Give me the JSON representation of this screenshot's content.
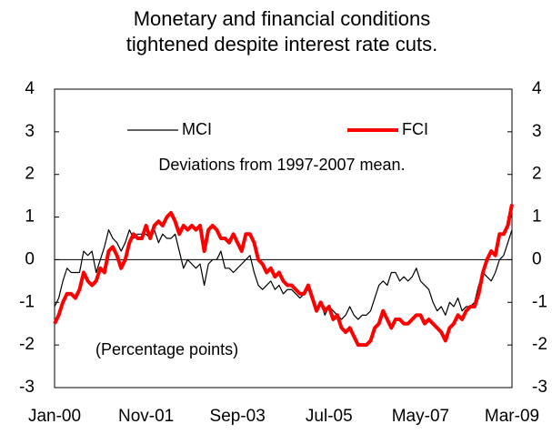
{
  "chart_data": {
    "type": "line",
    "title": [
      "Monetary and financial conditions",
      "tightened despite interest rate cuts."
    ],
    "annotations": [
      "Deviations from 1997-2007 mean.",
      "(Percentage points)"
    ],
    "categories": [
      "Jan-00",
      null,
      null,
      null,
      null,
      null,
      null,
      null,
      null,
      null,
      null,
      null,
      null,
      null,
      null,
      null,
      null,
      null,
      null,
      null,
      null,
      null,
      "Nov-01",
      null,
      null,
      null,
      null,
      null,
      null,
      null,
      null,
      null,
      null,
      null,
      null,
      null,
      null,
      null,
      null,
      null,
      null,
      null,
      null,
      null,
      "Sep-03",
      null,
      null,
      null,
      null,
      null,
      null,
      null,
      null,
      null,
      null,
      null,
      null,
      null,
      null,
      null,
      null,
      null,
      null,
      null,
      null,
      null,
      "Jul-05",
      null,
      null,
      null,
      null,
      null,
      null,
      null,
      null,
      null,
      null,
      null,
      null,
      null,
      null,
      null,
      null,
      null,
      null,
      null,
      null,
      null,
      "May-07",
      null,
      null,
      null,
      null,
      null,
      null,
      null,
      null,
      null,
      null,
      null,
      null,
      null,
      null,
      null,
      null,
      null,
      null,
      null,
      null,
      null,
      "Mar-09"
    ],
    "series": [
      {
        "name": "MCI",
        "color": "#000000",
        "width": 1.2,
        "values": [
          -1.1,
          -0.9,
          -0.5,
          -0.2,
          -0.3,
          -0.3,
          -0.3,
          0.2,
          0.1,
          0.2,
          -0.3,
          0.0,
          0.3,
          0.7,
          0.5,
          0.4,
          0.2,
          0.4,
          0.7,
          0.5,
          0.6,
          0.6,
          0.6,
          0.5,
          0.7,
          0.4,
          0.6,
          0.5,
          0.5,
          0.6,
          0.2,
          -0.2,
          0.0,
          -0.1,
          -0.2,
          -0.1,
          -0.6,
          -0.1,
          0.0,
          0.0,
          0.2,
          -0.2,
          -0.2,
          -0.3,
          -0.2,
          -0.1,
          0.0,
          0.1,
          -0.3,
          -0.6,
          -0.7,
          -0.6,
          -0.5,
          -0.7,
          -0.6,
          -0.8,
          -0.7,
          -0.7,
          -0.8,
          -0.9,
          -0.8,
          -0.7,
          -0.9,
          -1.2,
          -1.0,
          -1.3,
          -1.1,
          -1.2,
          -1.3,
          -1.4,
          -1.3,
          -1.1,
          -1.3,
          -1.4,
          -1.3,
          -1.3,
          -1.2,
          -0.9,
          -0.6,
          -0.5,
          -0.6,
          -0.3,
          -0.3,
          -0.5,
          -0.4,
          -0.5,
          -0.4,
          -0.2,
          -0.5,
          -0.6,
          -0.7,
          -1.0,
          -1.2,
          -1.1,
          -1.3,
          -1.0,
          -1.1,
          -0.9,
          -1.2,
          -1.1,
          -1.1,
          -1.0,
          -0.6,
          -0.3,
          -0.4,
          -0.5,
          -0.3,
          0.0,
          0.1,
          0.4,
          0.7
        ]
      },
      {
        "name": "FCI",
        "color": "#ff0000",
        "width": 4,
        "values": [
          -1.5,
          -1.3,
          -1.0,
          -0.8,
          -0.8,
          -0.9,
          -0.7,
          -0.3,
          -0.5,
          -0.6,
          -0.5,
          -0.2,
          -0.3,
          0.2,
          0.3,
          0.1,
          -0.2,
          0.0,
          0.4,
          0.6,
          0.5,
          0.5,
          0.8,
          0.5,
          0.8,
          0.9,
          0.8,
          1.0,
          1.1,
          0.9,
          0.6,
          0.8,
          0.7,
          0.8,
          0.7,
          0.8,
          0.2,
          0.7,
          0.8,
          0.7,
          0.5,
          0.5,
          0.4,
          0.6,
          0.4,
          0.2,
          0.6,
          0.6,
          0.4,
          0.0,
          -0.1,
          -0.3,
          -0.2,
          -0.4,
          -0.3,
          -0.5,
          -0.6,
          -0.6,
          -0.7,
          -0.8,
          -0.8,
          -0.6,
          -0.9,
          -1.2,
          -1.0,
          -1.2,
          -1.1,
          -1.4,
          -1.3,
          -1.6,
          -1.7,
          -1.6,
          -1.8,
          -2.0,
          -2.0,
          -2.0,
          -1.9,
          -1.6,
          -1.5,
          -1.2,
          -1.4,
          -1.6,
          -1.4,
          -1.4,
          -1.5,
          -1.5,
          -1.4,
          -1.3,
          -1.3,
          -1.5,
          -1.4,
          -1.5,
          -1.6,
          -1.7,
          -1.9,
          -1.6,
          -1.5,
          -1.3,
          -1.4,
          -1.2,
          -1.1,
          -1.1,
          -0.8,
          -0.3,
          0.0,
          0.2,
          0.1,
          0.6,
          0.6,
          0.8,
          1.3
        ]
      }
    ],
    "ylim": [
      -3,
      4
    ],
    "yticks": [
      -3,
      -2,
      -1,
      0,
      1,
      2,
      3,
      4
    ],
    "y2lim": [
      -3,
      4
    ],
    "y2ticks": [
      -3,
      -2,
      -1,
      0,
      1,
      2,
      3,
      4
    ]
  }
}
